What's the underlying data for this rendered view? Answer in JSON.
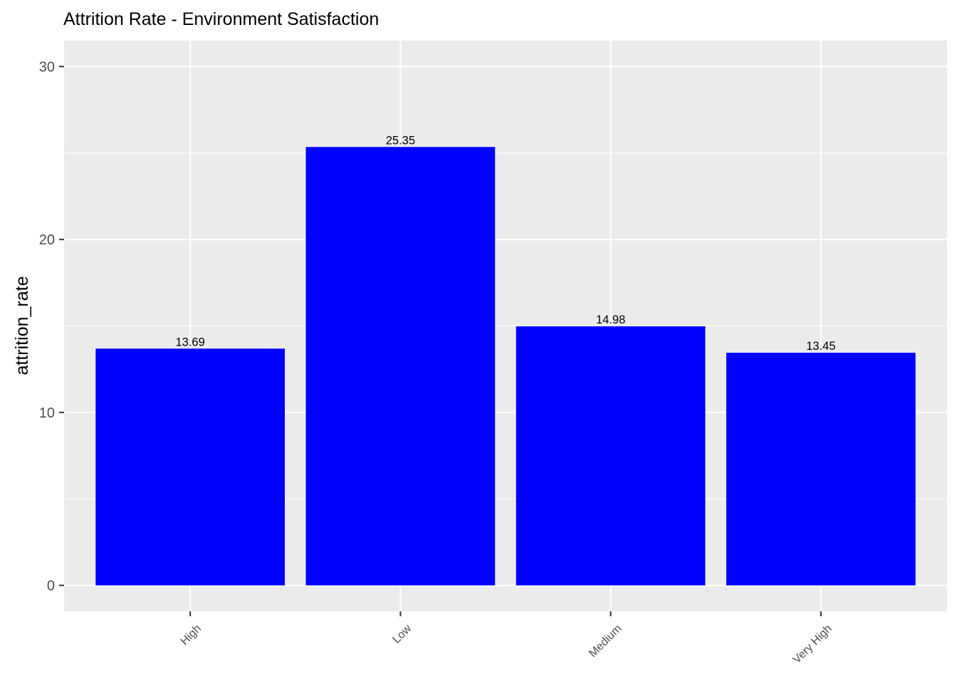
{
  "chart_data": {
    "type": "bar",
    "title": "Attrition Rate - Environment Satisfaction",
    "xlabel": "",
    "ylabel": "attrition_rate",
    "categories": [
      "High",
      "Low",
      "Medium",
      "Very High"
    ],
    "values": [
      13.69,
      25.35,
      14.98,
      13.45
    ],
    "value_labels": [
      "13.69",
      "25.35",
      "14.98",
      "13.45"
    ],
    "y_ticks": [
      0,
      10,
      20,
      30
    ],
    "y_tick_labels": [
      "0",
      "10",
      "20",
      "30"
    ],
    "ylim": [
      -1.5,
      31.5
    ],
    "grid": true,
    "legend": "none",
    "colors": {
      "bar": "#0000ff",
      "panel": "#ebebeb",
      "grid": "#ffffff",
      "tick": "#333333"
    }
  }
}
